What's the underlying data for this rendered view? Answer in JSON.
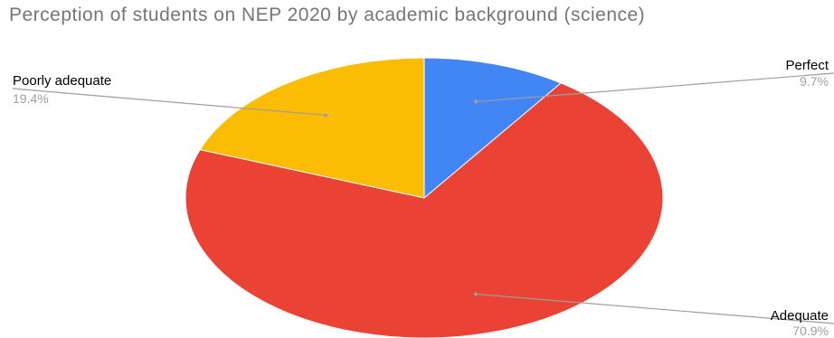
{
  "chart_data": {
    "type": "pie",
    "title": "Perception of students on NEP 2020 by academic background (science)",
    "start_angle_deg": 0,
    "direction": "clockwise",
    "slices": [
      {
        "label": "Perfect",
        "value": 9.7,
        "value_label": "9.7%",
        "color": "#4285f4"
      },
      {
        "label": "Adequate",
        "value": 70.9,
        "value_label": "70.9%",
        "color": "#ea4335"
      },
      {
        "label": "Poorly adequate",
        "value": 19.4,
        "value_label": "19.4%",
        "color": "#fbbc04"
      }
    ],
    "legend": "none",
    "label_style": "callout-lines"
  }
}
